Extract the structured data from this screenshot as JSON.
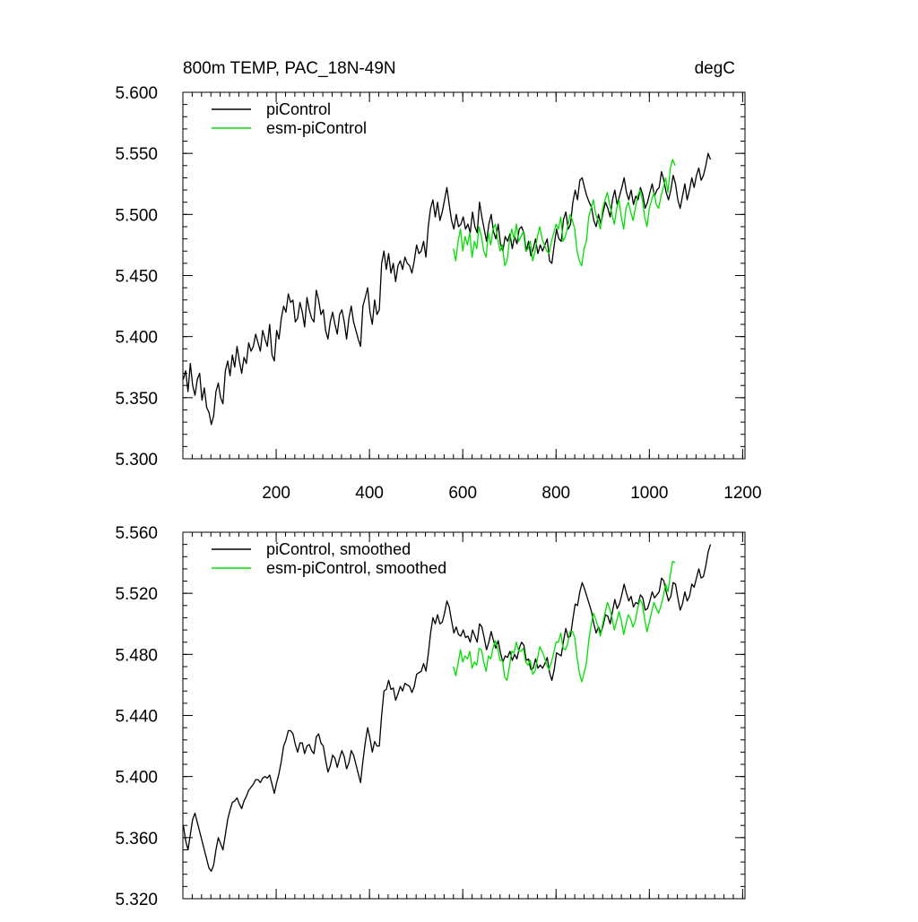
{
  "figure": {
    "title_left": "800m TEMP, PAC_18N-49N",
    "title_right": "degC"
  },
  "colors": {
    "picontrol": "#000000",
    "esm_picontrol": "#00e000",
    "axis": "#000000"
  },
  "chart_data": [
    {
      "type": "line",
      "name": "raw",
      "title": "800m TEMP, PAC_18N-49N",
      "units": "degC",
      "xlim": [
        0,
        1205
      ],
      "ylim": [
        5.3,
        5.6
      ],
      "xticks": [
        200,
        400,
        600,
        800,
        1000,
        1200
      ],
      "xtick_labels": [
        "200",
        "400",
        "600",
        "800",
        "1000",
        "1200"
      ],
      "yticks": [
        5.3,
        5.35,
        5.4,
        5.45,
        5.5,
        5.55,
        5.6
      ],
      "ytick_labels": [
        "5.300",
        "5.350",
        "5.400",
        "5.450",
        "5.500",
        "5.550",
        "5.600"
      ],
      "legend": {
        "position": "top-left",
        "entries": [
          "piControl",
          "esm-piControl"
        ]
      },
      "series": [
        {
          "name": "piControl",
          "color": "#000000",
          "x_start": 1,
          "x_step": 5,
          "values": [
            5.365,
            5.372,
            5.355,
            5.378,
            5.36,
            5.352,
            5.365,
            5.37,
            5.348,
            5.358,
            5.342,
            5.338,
            5.328,
            5.335,
            5.355,
            5.362,
            5.35,
            5.345,
            5.372,
            5.38,
            5.368,
            5.385,
            5.375,
            5.392,
            5.38,
            5.37,
            5.383,
            5.378,
            5.395,
            5.388,
            5.392,
            5.402,
            5.395,
            5.388,
            5.405,
            5.398,
            5.392,
            5.41,
            5.385,
            5.38,
            5.405,
            5.398,
            5.415,
            5.425,
            5.42,
            5.435,
            5.428,
            5.43,
            5.412,
            5.415,
            5.428,
            5.42,
            5.408,
            5.432,
            5.422,
            5.415,
            5.412,
            5.438,
            5.43,
            5.418,
            5.422,
            5.405,
            5.398,
            5.412,
            5.42,
            5.41,
            5.402,
            5.418,
            5.422,
            5.412,
            5.398,
            5.415,
            5.425,
            5.412,
            5.405,
            5.398,
            5.392,
            5.425,
            5.432,
            5.44,
            5.42,
            5.41,
            5.43,
            5.418,
            5.422,
            5.46,
            5.47,
            5.455,
            5.468,
            5.452,
            5.46,
            5.445,
            5.458,
            5.462,
            5.455,
            5.465,
            5.46,
            5.458,
            5.452,
            5.462,
            5.475,
            5.468,
            5.47,
            5.478,
            5.465,
            5.49,
            5.505,
            5.512,
            5.498,
            5.51,
            5.495,
            5.502,
            5.512,
            5.522,
            5.508,
            5.495,
            5.488,
            5.5,
            5.49,
            5.492,
            5.498,
            5.488,
            5.492,
            5.485,
            5.502,
            5.49,
            5.485,
            5.51,
            5.498,
            5.488,
            5.478,
            5.492,
            5.5,
            5.486,
            5.48,
            5.492,
            5.476,
            5.47,
            5.482,
            5.478,
            5.484,
            5.472,
            5.482,
            5.476,
            5.488,
            5.49,
            5.485,
            5.47,
            5.478,
            5.466,
            5.472,
            5.48,
            5.468,
            5.475,
            5.47,
            5.475,
            5.48,
            5.462,
            5.46,
            5.475,
            5.488,
            5.48,
            5.478,
            5.496,
            5.502,
            5.488,
            5.492,
            5.51,
            5.52,
            5.512,
            5.528,
            5.53,
            5.522,
            5.515,
            5.51,
            5.506,
            5.495,
            5.49,
            5.5,
            5.492,
            5.502,
            5.51,
            5.505,
            5.498,
            5.512,
            5.52,
            5.508,
            5.515,
            5.522,
            5.53,
            5.518,
            5.512,
            5.52,
            5.508,
            5.515,
            5.512,
            5.522,
            5.516,
            5.505,
            5.51,
            5.518,
            5.525,
            5.515,
            5.52,
            5.522,
            5.535,
            5.528,
            5.518,
            5.512,
            5.52,
            5.532,
            5.525,
            5.512,
            5.505,
            5.515,
            5.525,
            5.512,
            5.52,
            5.53,
            5.522,
            5.532,
            5.538,
            5.528,
            5.532,
            5.54,
            5.55,
            5.545
          ]
        },
        {
          "name": "esm-piControl",
          "color": "#00e000",
          "x_start": 580,
          "x_step": 5,
          "values": [
            5.472,
            5.462,
            5.478,
            5.488,
            5.47,
            5.482,
            5.475,
            5.485,
            5.465,
            5.478,
            5.472,
            5.49,
            5.482,
            5.47,
            5.465,
            5.485,
            5.475,
            5.488,
            5.492,
            5.48,
            5.47,
            5.475,
            5.458,
            5.462,
            5.478,
            5.488,
            5.48,
            5.492,
            5.478,
            5.482,
            5.486,
            5.47,
            5.472,
            5.478,
            5.462,
            5.47,
            5.482,
            5.49,
            5.48,
            5.475,
            5.47,
            5.468,
            5.478,
            5.485,
            5.492,
            5.488,
            5.498,
            5.478,
            5.482,
            5.49,
            5.5,
            5.495,
            5.488,
            5.47,
            5.462,
            5.458,
            5.472,
            5.478,
            5.498,
            5.505,
            5.512,
            5.5,
            5.495,
            5.488,
            5.505,
            5.512,
            5.518,
            5.508,
            5.5,
            5.492,
            5.505,
            5.512,
            5.498,
            5.488,
            5.505,
            5.51,
            5.502,
            5.495,
            5.505,
            5.515,
            5.52,
            5.512,
            5.498,
            5.49,
            5.505,
            5.512,
            5.518,
            5.508,
            5.505,
            5.515,
            5.522,
            5.53,
            5.518,
            5.538,
            5.545,
            5.54
          ]
        }
      ]
    },
    {
      "type": "line",
      "name": "smoothed",
      "xlim": [
        0,
        1205
      ],
      "ylim": [
        5.32,
        5.56
      ],
      "xticks": [
        200,
        400,
        600,
        800,
        1000,
        1200
      ],
      "xtick_labels": [],
      "yticks": [
        5.32,
        5.36,
        5.4,
        5.44,
        5.48,
        5.52,
        5.56
      ],
      "ytick_labels": [
        "5.320",
        "5.360",
        "5.400",
        "5.440",
        "5.480",
        "5.520",
        "5.560"
      ],
      "legend": {
        "position": "top-left",
        "entries": [
          "piControl, smoothed",
          "esm-piControl, smoothed"
        ]
      },
      "series": [
        {
          "name": "piControl, smoothed",
          "color": "#000000",
          "x_start": 1,
          "x_step": 5,
          "values": [
            5.368,
            5.358,
            5.352,
            5.362,
            5.372,
            5.376,
            5.37,
            5.364,
            5.358,
            5.352,
            5.346,
            5.34,
            5.338,
            5.342,
            5.352,
            5.36,
            5.356,
            5.352,
            5.362,
            5.372,
            5.378,
            5.383,
            5.384,
            5.386,
            5.382,
            5.379,
            5.384,
            5.387,
            5.391,
            5.393,
            5.395,
            5.398,
            5.398,
            5.396,
            5.399,
            5.4,
            5.399,
            5.401,
            5.395,
            5.389,
            5.396,
            5.402,
            5.41,
            5.42,
            5.424,
            5.43,
            5.43,
            5.428,
            5.421,
            5.416,
            5.422,
            5.422,
            5.415,
            5.42,
            5.421,
            5.417,
            5.415,
            5.426,
            5.428,
            5.422,
            5.42,
            5.411,
            5.403,
            5.407,
            5.414,
            5.412,
            5.406,
            5.412,
            5.417,
            5.413,
            5.405,
            5.409,
            5.417,
            5.414,
            5.408,
            5.402,
            5.396,
            5.41,
            5.422,
            5.432,
            5.425,
            5.416,
            5.423,
            5.42,
            5.42,
            5.44,
            5.456,
            5.457,
            5.463,
            5.457,
            5.458,
            5.45,
            5.454,
            5.459,
            5.456,
            5.461,
            5.46,
            5.459,
            5.455,
            5.459,
            5.467,
            5.468,
            5.469,
            5.474,
            5.469,
            5.48,
            5.494,
            5.504,
            5.5,
            5.506,
            5.5,
            5.501,
            5.507,
            5.515,
            5.511,
            5.502,
            5.494,
            5.498,
            5.493,
            5.492,
            5.496,
            5.491,
            5.492,
            5.488,
            5.496,
            5.492,
            5.488,
            5.5,
            5.498,
            5.491,
            5.483,
            5.488,
            5.495,
            5.489,
            5.484,
            5.489,
            5.481,
            5.475,
            5.479,
            5.478,
            5.482,
            5.476,
            5.48,
            5.477,
            5.484,
            5.488,
            5.486,
            5.476,
            5.477,
            5.47,
            5.471,
            5.477,
            5.471,
            5.473,
            5.471,
            5.474,
            5.478,
            5.468,
            5.463,
            5.47,
            5.481,
            5.48,
            5.479,
            5.489,
            5.497,
            5.491,
            5.492,
            5.503,
            5.513,
            5.512,
            5.521,
            5.527,
            5.523,
            5.518,
            5.513,
            5.508,
            5.5,
            5.494,
            5.498,
            5.494,
            5.499,
            5.506,
            5.505,
            5.5,
            5.508,
            5.516,
            5.51,
            5.513,
            5.519,
            5.526,
            5.52,
            5.515,
            5.518,
            5.511,
            5.514,
            5.513,
            5.519,
            5.517,
            5.509,
            5.51,
            5.515,
            5.521,
            5.517,
            5.519,
            5.521,
            5.53,
            5.528,
            5.521,
            5.515,
            5.518,
            5.527,
            5.526,
            5.517,
            5.509,
            5.513,
            5.521,
            5.515,
            5.518,
            5.526,
            5.524,
            5.53,
            5.536,
            5.53,
            5.531,
            5.538,
            5.547,
            5.552
          ]
        },
        {
          "name": "esm-piControl, smoothed",
          "color": "#00e000",
          "x_start": 580,
          "x_step": 5,
          "values": [
            5.472,
            5.466,
            5.474,
            5.483,
            5.475,
            5.479,
            5.477,
            5.482,
            5.471,
            5.475,
            5.473,
            5.484,
            5.483,
            5.475,
            5.469,
            5.479,
            5.477,
            5.484,
            5.489,
            5.484,
            5.476,
            5.476,
            5.465,
            5.463,
            5.472,
            5.482,
            5.481,
            5.488,
            5.482,
            5.482,
            5.484,
            5.475,
            5.473,
            5.476,
            5.467,
            5.469,
            5.477,
            5.485,
            5.482,
            5.478,
            5.473,
            5.47,
            5.475,
            5.481,
            5.488,
            5.488,
            5.494,
            5.484,
            5.483,
            5.487,
            5.495,
            5.495,
            5.491,
            5.478,
            5.468,
            5.462,
            5.468,
            5.474,
            5.489,
            5.499,
            5.507,
            5.503,
            5.498,
            5.492,
            5.5,
            5.507,
            5.514,
            5.51,
            5.504,
            5.496,
            5.502,
            5.508,
            5.502,
            5.493,
            5.5,
            5.506,
            5.503,
            5.498,
            5.502,
            5.51,
            5.516,
            5.513,
            5.503,
            5.495,
            5.501,
            5.508,
            5.514,
            5.51,
            5.507,
            5.512,
            5.518,
            5.526,
            5.521,
            5.532,
            5.541,
            5.54
          ]
        }
      ]
    }
  ]
}
